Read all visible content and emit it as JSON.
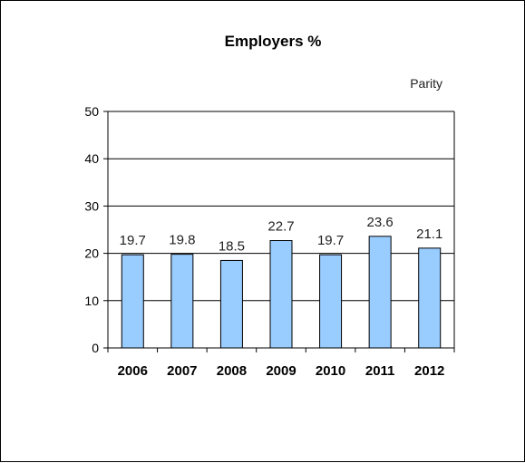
{
  "chart_data": {
    "type": "bar",
    "title": "Employers %",
    "legend_text": "Parity",
    "legend_position": "top-right",
    "categories": [
      "2006",
      "2007",
      "2008",
      "2009",
      "2010",
      "2011",
      "2012"
    ],
    "values": [
      19.7,
      19.8,
      18.5,
      22.7,
      19.7,
      23.6,
      21.1
    ],
    "data_labels": [
      "19.7",
      "19.8",
      "18.5",
      "22.7",
      "19.7",
      "23.6",
      "21.1"
    ],
    "yticks": [
      0,
      10,
      20,
      30,
      40,
      50
    ],
    "ylim": [
      0,
      50
    ],
    "xlabel": "",
    "ylabel": "",
    "grid": true,
    "bar_color": "#99ccff"
  }
}
